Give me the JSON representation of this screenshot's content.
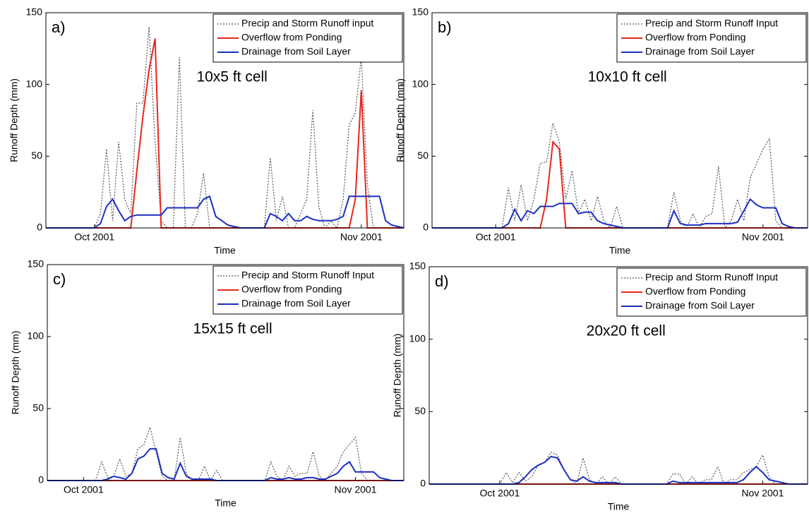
{
  "chart_data": [
    {
      "type": "line",
      "panel_label": "a)",
      "annotation": "10x5 ft cell",
      "xlabel": "Time",
      "ylabel": "Runoff Depth (mm)",
      "categories": [
        null,
        null,
        null,
        null,
        null,
        null,
        null,
        null,
        "Oct 2001",
        null,
        null,
        null,
        null,
        null,
        null,
        null,
        null,
        null,
        null,
        null,
        null,
        null,
        null,
        null,
        null,
        null,
        null,
        null,
        null,
        null,
        null,
        null,
        null,
        null,
        null,
        null,
        null,
        null,
        null,
        null,
        null,
        null,
        null,
        null,
        null,
        null,
        null,
        null,
        null,
        null,
        null,
        null,
        "Nov 2001",
        null,
        null,
        null,
        null,
        null,
        null,
        null
      ],
      "series": [
        {
          "name": "Precip and Storm Runoff input",
          "color": "#555555",
          "values": [
            0,
            0,
            0,
            0,
            0,
            0,
            0,
            0,
            0,
            10,
            55,
            5,
            60,
            20,
            10,
            87,
            87,
            140,
            60,
            5,
            0,
            0,
            119,
            0,
            0,
            10,
            38,
            0,
            0,
            0,
            0,
            0,
            0,
            0,
            0,
            0,
            0,
            49,
            5,
            22,
            0,
            0,
            10,
            20,
            82,
            15,
            0,
            5,
            0,
            20,
            72,
            80,
            119,
            30,
            0,
            0,
            0,
            0,
            0,
            0
          ]
        },
        {
          "name": "Overflow from Ponding",
          "color": "#e8261d",
          "values": [
            0,
            0,
            0,
            0,
            0,
            0,
            0,
            0,
            0,
            0,
            0,
            0,
            0,
            0,
            0,
            40,
            78,
            110,
            132,
            0,
            0,
            0,
            0,
            0,
            0,
            0,
            0,
            0,
            0,
            0,
            0,
            0,
            0,
            0,
            0,
            0,
            0,
            0,
            0,
            0,
            0,
            0,
            0,
            0,
            0,
            0,
            0,
            0,
            0,
            0,
            0,
            20,
            96,
            0,
            0,
            0,
            0,
            0,
            0,
            0
          ]
        },
        {
          "name": "Drainage from Soil Layer",
          "color": "#1c2fc4",
          "values": [
            0,
            0,
            0,
            0,
            0,
            0,
            0,
            0,
            0,
            3,
            15,
            20,
            12,
            5,
            8,
            9,
            9,
            9,
            9,
            9,
            14,
            14,
            14,
            14,
            14,
            14,
            20,
            22,
            8,
            5,
            2,
            1,
            0,
            0,
            0,
            0,
            0,
            10,
            8,
            5,
            10,
            5,
            5,
            8,
            6,
            5,
            5,
            5,
            6,
            8,
            22,
            22,
            22,
            22,
            22,
            22,
            5,
            2,
            1,
            0
          ]
        }
      ],
      "ylim": [
        0,
        150
      ],
      "yticks": [
        0,
        50,
        100,
        150
      ],
      "legend": "upper right"
    },
    {
      "type": "line",
      "panel_label": "b)",
      "annotation": "10x10 ft cell",
      "xlabel": "Time",
      "ylabel": "Runoff Depth (mm)",
      "categories": [
        null,
        null,
        null,
        null,
        null,
        null,
        null,
        null,
        null,
        null,
        "Oct 2001",
        null,
        null,
        null,
        null,
        null,
        null,
        null,
        null,
        null,
        null,
        null,
        null,
        null,
        null,
        null,
        null,
        null,
        null,
        null,
        null,
        null,
        null,
        null,
        null,
        null,
        null,
        null,
        null,
        null,
        null,
        null,
        null,
        null,
        null,
        null,
        null,
        null,
        null,
        null,
        null,
        null,
        "Nov 2001",
        null,
        null,
        null,
        null,
        null,
        null,
        null
      ],
      "series": [
        {
          "name": "Precip and Storm Runoff Input",
          "color": "#555555",
          "values": [
            0,
            0,
            0,
            0,
            0,
            0,
            0,
            0,
            0,
            0,
            0,
            0,
            28,
            5,
            30,
            5,
            20,
            45,
            46,
            73,
            60,
            20,
            40,
            10,
            20,
            5,
            22,
            5,
            0,
            15,
            0,
            0,
            0,
            0,
            0,
            0,
            0,
            0,
            25,
            5,
            0,
            10,
            0,
            8,
            10,
            43,
            0,
            5,
            20,
            5,
            35,
            45,
            55,
            62,
            5,
            0,
            0,
            0,
            0,
            0
          ]
        },
        {
          "name": "Overflow from Ponding",
          "color": "#e8261d",
          "values": [
            0,
            0,
            0,
            0,
            0,
            0,
            0,
            0,
            0,
            0,
            0,
            0,
            0,
            0,
            0,
            0,
            0,
            0,
            20,
            60,
            55,
            0,
            0,
            0,
            0,
            0,
            0,
            0,
            0,
            0,
            0,
            0,
            0,
            0,
            0,
            0,
            0,
            0,
            0,
            0,
            0,
            0,
            0,
            0,
            0,
            0,
            0,
            0,
            0,
            0,
            0,
            0,
            0,
            0,
            0,
            0,
            0,
            0,
            0,
            0
          ]
        },
        {
          "name": "Drainage from Soil Layer",
          "color": "#1c2fc4",
          "values": [
            0,
            0,
            0,
            0,
            0,
            0,
            0,
            0,
            0,
            0,
            0,
            0,
            3,
            13,
            5,
            12,
            10,
            15,
            15,
            15,
            17,
            17,
            17,
            10,
            11,
            11,
            5,
            3,
            2,
            1,
            0,
            0,
            0,
            0,
            0,
            0,
            0,
            0,
            12,
            3,
            2,
            2,
            2,
            3,
            3,
            3,
            3,
            3,
            4,
            12,
            20,
            16,
            14,
            14,
            14,
            3,
            1,
            0,
            0,
            0
          ]
        }
      ],
      "ylim": [
        0,
        150
      ],
      "yticks": [
        0,
        50,
        100,
        150
      ],
      "legend": "upper right"
    },
    {
      "type": "line",
      "panel_label": "c)",
      "annotation": "15x15 ft cell",
      "xlabel": "Time",
      "ylabel": "Runoff Depth (mm)",
      "categories": [
        null,
        null,
        null,
        null,
        null,
        null,
        "Oct 2001",
        null,
        null,
        null,
        null,
        null,
        null,
        null,
        null,
        null,
        null,
        null,
        null,
        null,
        null,
        null,
        null,
        null,
        null,
        null,
        null,
        null,
        null,
        null,
        null,
        null,
        null,
        null,
        null,
        null,
        null,
        null,
        null,
        null,
        null,
        null,
        null,
        null,
        null,
        null,
        null,
        null,
        null,
        null,
        null,
        "Nov 2001",
        null,
        null,
        null,
        null,
        null,
        null,
        null,
        null
      ],
      "series": [
        {
          "name": "Precip and Storm Runoff Input",
          "color": "#555555",
          "values": [
            0,
            0,
            0,
            0,
            0,
            0,
            0,
            0,
            0,
            13,
            2,
            3,
            15,
            3,
            5,
            22,
            25,
            37,
            20,
            3,
            0,
            0,
            30,
            5,
            0,
            0,
            10,
            0,
            7,
            0,
            0,
            0,
            0,
            0,
            0,
            0,
            0,
            13,
            3,
            0,
            10,
            3,
            5,
            5,
            20,
            3,
            0,
            5,
            10,
            20,
            25,
            30,
            5,
            0,
            0,
            0,
            0,
            0,
            0,
            0
          ]
        },
        {
          "name": "Overflow from Ponding",
          "color": "#e8261d",
          "values": [
            0,
            0,
            0,
            0,
            0,
            0,
            0,
            0,
            0,
            0,
            0,
            0,
            0,
            0,
            0,
            0,
            0,
            0,
            0,
            0,
            0,
            0,
            0,
            0,
            0,
            0,
            0,
            0,
            0,
            0,
            0,
            0,
            0,
            0,
            0,
            0,
            0,
            0,
            0,
            0,
            0,
            0,
            0,
            0,
            0,
            0,
            0,
            0,
            0,
            0,
            0,
            0,
            0,
            0,
            0,
            0,
            0,
            0,
            0,
            0
          ]
        },
        {
          "name": "Drainage from Soil Layer",
          "color": "#1c2fc4",
          "values": [
            0,
            0,
            0,
            0,
            0,
            0,
            0,
            0,
            0,
            0,
            1,
            3,
            2,
            1,
            5,
            15,
            17,
            22,
            22,
            5,
            2,
            1,
            12,
            3,
            1,
            1,
            1,
            1,
            0,
            0,
            0,
            0,
            0,
            0,
            0,
            0,
            0,
            2,
            1,
            1,
            2,
            1,
            1,
            2,
            2,
            1,
            1,
            3,
            5,
            10,
            13,
            6,
            6,
            6,
            6,
            2,
            1,
            0,
            0,
            0
          ]
        }
      ],
      "ylim": [
        0,
        150
      ],
      "yticks": [
        0,
        50,
        100,
        150
      ],
      "legend": "upper right"
    },
    {
      "type": "line",
      "panel_label": "d)",
      "annotation": "20x20 ft cell",
      "xlabel": "Time",
      "ylabel": "Runoff Depth (mm)",
      "categories": [
        null,
        null,
        null,
        null,
        null,
        null,
        null,
        null,
        null,
        null,
        null,
        "Oct 2001",
        null,
        null,
        null,
        null,
        null,
        null,
        null,
        null,
        null,
        null,
        null,
        null,
        null,
        null,
        null,
        null,
        null,
        null,
        null,
        null,
        null,
        null,
        null,
        null,
        null,
        null,
        null,
        null,
        null,
        null,
        null,
        null,
        null,
        null,
        null,
        null,
        null,
        null,
        null,
        null,
        "Nov 2001",
        null,
        null,
        null,
        null,
        null,
        null,
        null
      ],
      "series": [
        {
          "name": "Precip and Storm Runoff Input",
          "color": "#555555",
          "values": [
            0,
            0,
            0,
            0,
            0,
            0,
            0,
            0,
            0,
            0,
            0,
            0,
            8,
            1,
            8,
            2,
            5,
            13,
            15,
            22,
            20,
            10,
            3,
            0,
            18,
            3,
            0,
            5,
            0,
            5,
            0,
            0,
            0,
            0,
            0,
            0,
            0,
            0,
            7,
            7,
            0,
            5,
            0,
            3,
            3,
            12,
            0,
            3,
            3,
            8,
            10,
            12,
            20,
            5,
            0,
            0,
            0,
            0,
            0,
            0
          ]
        },
        {
          "name": "Overflow from Ponding",
          "color": "#e8261d",
          "values": [
            0,
            0,
            0,
            0,
            0,
            0,
            0,
            0,
            0,
            0,
            0,
            0,
            0,
            0,
            0,
            0,
            0,
            0,
            0,
            0,
            0,
            0,
            0,
            0,
            0,
            0,
            0,
            0,
            0,
            0,
            0,
            0,
            0,
            0,
            0,
            0,
            0,
            0,
            0,
            0,
            0,
            0,
            0,
            0,
            0,
            0,
            0,
            0,
            0,
            0,
            0,
            0,
            0,
            0,
            0,
            0,
            0,
            0,
            0,
            0
          ]
        },
        {
          "name": "Drainage from Soil Layer",
          "color": "#1c2fc4",
          "values": [
            0,
            0,
            0,
            0,
            0,
            0,
            0,
            0,
            0,
            0,
            0,
            0,
            0,
            0,
            1,
            5,
            10,
            13,
            15,
            19,
            18,
            10,
            3,
            2,
            5,
            2,
            1,
            1,
            1,
            1,
            0,
            0,
            0,
            0,
            0,
            0,
            0,
            0,
            2,
            1,
            1,
            1,
            1,
            1,
            1,
            1,
            1,
            1,
            1,
            3,
            8,
            12,
            8,
            3,
            2,
            1,
            0,
            0,
            0,
            0
          ]
        }
      ],
      "ylim": [
        0,
        150
      ],
      "yticks": [
        0,
        50,
        100,
        150
      ],
      "legend": "upper right"
    }
  ]
}
